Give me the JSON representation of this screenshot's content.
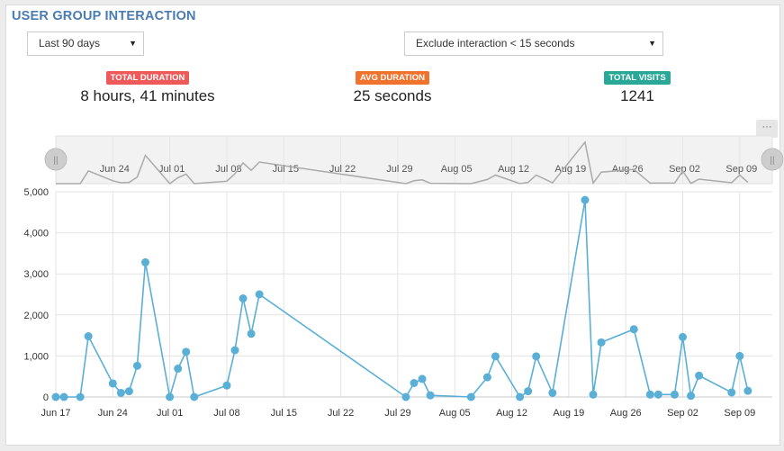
{
  "header": {
    "title": "USER GROUP INTERACTION"
  },
  "filters": {
    "period": {
      "value": "Last 90 days"
    },
    "exclude": {
      "value": "Exclude interaction < 15 seconds"
    }
  },
  "stats": [
    {
      "label": "TOTAL DURATION",
      "value": "8 hours, 41 minutes",
      "color": "#ee5a5a"
    },
    {
      "label": "AVG DURATION",
      "value": "25 seconds",
      "color": "#f0722d"
    },
    {
      "label": "TOTAL VISITS",
      "value": "1241",
      "color": "#2aa897"
    }
  ],
  "chart_menu": {
    "icon": "menu-icon",
    "label": "···"
  },
  "navigator": {
    "labels": [
      "Jun 24",
      "Jul 01",
      "Jul 08",
      "Jul 15",
      "Jul 22",
      "Jul 29",
      "Aug 05",
      "Aug 12",
      "Aug 19",
      "Aug 26",
      "Sep 02",
      "Sep 09"
    ],
    "handle_icon": "drag-handle-icon",
    "handle_label": "||"
  },
  "colors": {
    "series": "#5aafd6",
    "navigator_line": "#aaaaaa",
    "title": "#4a7bb2"
  },
  "chart_data": {
    "type": "line",
    "title": "",
    "xlabel": "",
    "ylabel": "",
    "ylim": [
      0,
      5000
    ],
    "yticks": [
      0,
      1000,
      2000,
      3000,
      4000,
      5000
    ],
    "ytick_labels": [
      "0",
      "1,000",
      "2,000",
      "3,000",
      "4,000",
      "5,000"
    ],
    "xlim": [
      "2019-06-17",
      "2019-09-13"
    ],
    "xticks": [
      "2019-06-17",
      "2019-06-24",
      "2019-07-01",
      "2019-07-08",
      "2019-07-15",
      "2019-07-22",
      "2019-07-29",
      "2019-08-05",
      "2019-08-12",
      "2019-08-19",
      "2019-08-26",
      "2019-09-02",
      "2019-09-09"
    ],
    "xtick_labels": [
      "Jun 17",
      "Jun 24",
      "Jul 01",
      "Jul 08",
      "Jul 15",
      "Jul 22",
      "Jul 29",
      "Aug 05",
      "Aug 12",
      "Aug 19",
      "Aug 26",
      "Sep 02",
      "Sep 09"
    ],
    "grid": true,
    "series": [
      {
        "x": [
          "2019-06-17",
          "2019-06-18",
          "2019-06-20",
          "2019-06-21",
          "2019-06-24",
          "2019-06-25",
          "2019-06-26",
          "2019-06-27",
          "2019-06-28",
          "2019-07-01",
          "2019-07-02",
          "2019-07-03",
          "2019-07-04",
          "2019-07-08",
          "2019-07-09",
          "2019-07-10",
          "2019-07-11",
          "2019-07-12",
          "2019-07-30",
          "2019-07-31",
          "2019-08-01",
          "2019-08-02",
          "2019-08-07",
          "2019-08-09",
          "2019-08-10",
          "2019-08-13",
          "2019-08-14",
          "2019-08-15",
          "2019-08-17",
          "2019-08-21",
          "2019-08-22",
          "2019-08-23",
          "2019-08-27",
          "2019-08-29",
          "2019-08-30",
          "2019-09-01",
          "2019-09-02",
          "2019-09-03",
          "2019-09-04",
          "2019-09-08",
          "2019-09-09",
          "2019-09-10"
        ],
        "y": [
          0,
          0,
          0,
          1480,
          330,
          100,
          140,
          760,
          3280,
          0,
          690,
          1100,
          0,
          280,
          1140,
          2400,
          1540,
          2500,
          0,
          340,
          440,
          40,
          0,
          480,
          990,
          0,
          140,
          990,
          100,
          4800,
          60,
          1330,
          1650,
          60,
          60,
          60,
          1460,
          30,
          520,
          110,
          1000,
          150
        ]
      }
    ]
  }
}
